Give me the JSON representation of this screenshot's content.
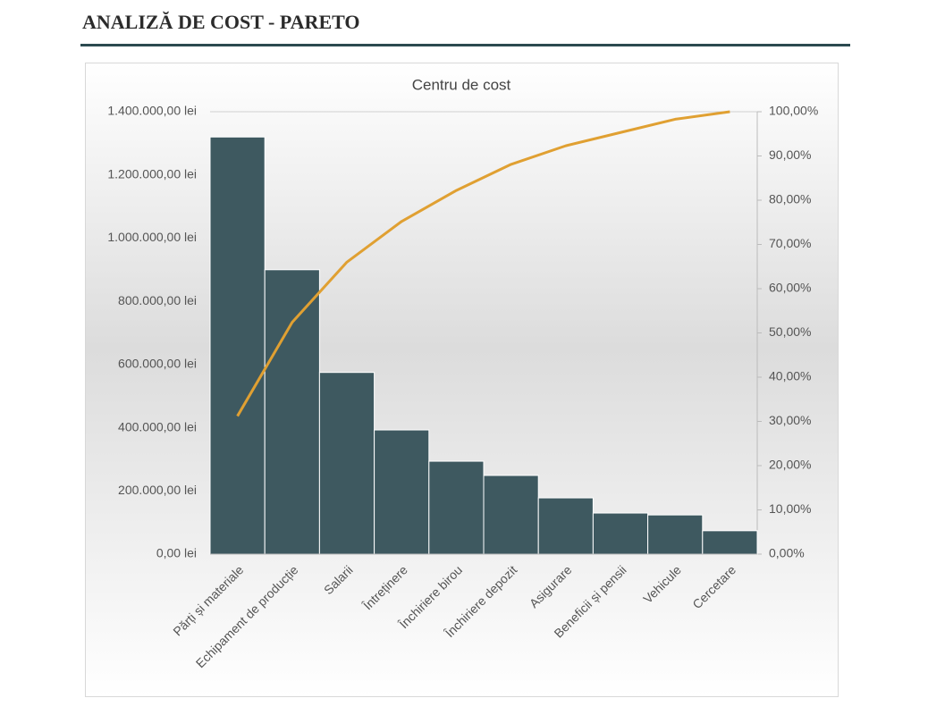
{
  "header": {
    "title": "ANALIZĂ DE COST - PARETO"
  },
  "chart_data": {
    "type": "pareto",
    "title": "Centru de cost",
    "categories": [
      "Părți și materiale",
      "Echipament de producție",
      "Salarii",
      "Întreținere",
      "Închiriere birou",
      "Închiriere depozit",
      "Asigurare",
      "Beneficii și pensii",
      "Vehicule",
      "Cercetare"
    ],
    "series": [
      {
        "color": "#3e5960",
        "values": [
          1320000,
          900000,
          575000,
          393000,
          294000,
          249000,
          178000,
          130000,
          124000,
          74000
        ]
      },
      {
        "color": "#e0a032",
        "axis": "y2",
        "values": [
          31.2,
          52.4,
          66.0,
          75.2,
          82.2,
          88.1,
          92.3,
          95.3,
          98.3,
          100
        ]
      }
    ],
    "ylim": [
      0,
      1400000
    ],
    "yticks": [
      {
        "value": 0,
        "label": "0,00 lei"
      },
      {
        "value": 200000,
        "label": "200.000,00 lei"
      },
      {
        "value": 400000,
        "label": "400.000,00 lei"
      },
      {
        "value": 600000,
        "label": "600.000,00 lei"
      },
      {
        "value": 800000,
        "label": "800.000,00 lei"
      },
      {
        "value": 1000000,
        "label": "1.000.000,00 lei"
      },
      {
        "value": 1200000,
        "label": "1.200.000,00 lei"
      },
      {
        "value": 1400000,
        "label": "1.400.000,00 lei"
      }
    ],
    "y2lim": [
      0,
      100
    ],
    "y2ticks": [
      {
        "value": 0,
        "label": "0,00%"
      },
      {
        "value": 10,
        "label": "10,00%"
      },
      {
        "value": 20,
        "label": "20,00%"
      },
      {
        "value": 30,
        "label": "30,00%"
      },
      {
        "value": 40,
        "label": "40,00%"
      },
      {
        "value": 50,
        "label": "50,00%"
      },
      {
        "value": 60,
        "label": "60,00%"
      },
      {
        "value": 70,
        "label": "70,00%"
      },
      {
        "value": 80,
        "label": "80,00%"
      },
      {
        "value": 90,
        "label": "90,00%"
      },
      {
        "value": 100,
        "label": "100,00%"
      }
    ],
    "grid": false
  }
}
